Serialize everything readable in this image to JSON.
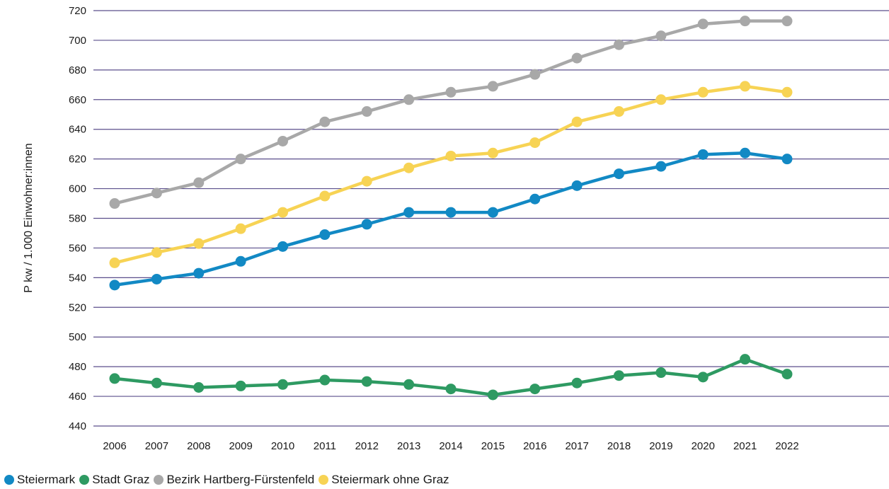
{
  "chart_data": {
    "type": "line",
    "title": "",
    "xlabel": "",
    "ylabel": "P kw / 1.000 Einwohner:innen",
    "ylim": [
      440,
      720
    ],
    "yticks": [
      440,
      460,
      480,
      500,
      520,
      540,
      560,
      580,
      600,
      620,
      640,
      660,
      680,
      700,
      720
    ],
    "grid": "horizontal",
    "legend_position": "bottom-left",
    "x": [
      "2006",
      "2007",
      "2008",
      "2009",
      "2010",
      "2011",
      "2012",
      "2013",
      "2014",
      "2015",
      "2016",
      "2017",
      "2018",
      "2019",
      "2020",
      "2021",
      "2022"
    ],
    "series": [
      {
        "name": "Steiermark",
        "color": "#1289c4",
        "values": [
          535,
          539,
          543,
          551,
          561,
          569,
          576,
          584,
          584,
          584,
          593,
          602,
          610,
          615,
          623,
          624,
          620
        ]
      },
      {
        "name": "Stadt Graz",
        "color": "#2e9a62",
        "values": [
          472,
          469,
          466,
          467,
          468,
          471,
          470,
          468,
          465,
          461,
          465,
          469,
          474,
          476,
          473,
          485,
          475
        ]
      },
      {
        "name": "Bezirk Hartberg-Fürstenfeld",
        "color": "#a8a8a8",
        "values": [
          590,
          597,
          604,
          620,
          632,
          645,
          652,
          660,
          665,
          669,
          677,
          688,
          697,
          703,
          711,
          713,
          713
        ]
      },
      {
        "name": "Steiermark ohne Graz",
        "color": "#f7d354",
        "values": [
          550,
          557,
          563,
          573,
          584,
          595,
          605,
          614,
          622,
          624,
          631,
          645,
          652,
          660,
          665,
          669,
          665
        ]
      }
    ]
  }
}
